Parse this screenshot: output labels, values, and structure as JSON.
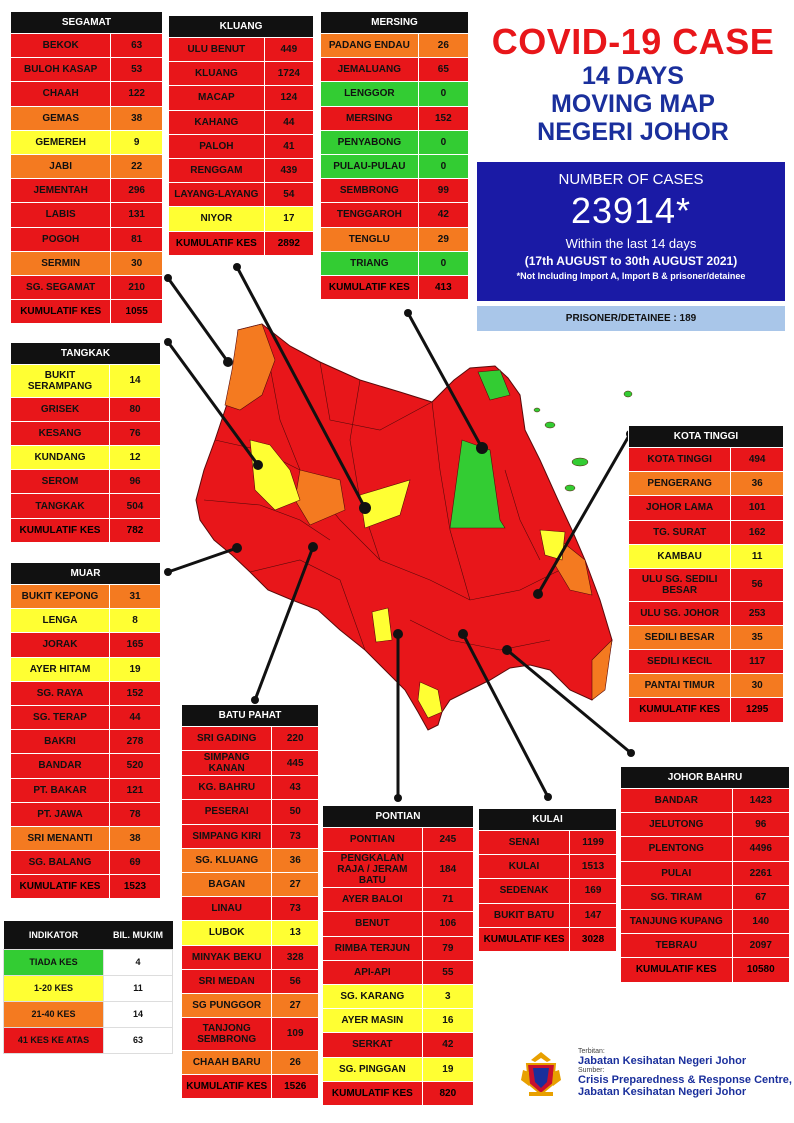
{
  "header": {
    "title": "COVID-19 CASE",
    "subtitle_1": "14 DAYS",
    "subtitle_2": "MOVING MAP",
    "subtitle_3": "NEGERI JOHOR"
  },
  "summary": {
    "label": "NUMBER OF CASES",
    "total": "23914*",
    "period_text": "Within the last 14 days",
    "period_dates": "(17th AUGUST  to 30th AUGUST 2021)",
    "note": "*Not Including Import A, Import B & prisoner/detainee",
    "prisoner_label": "PRISONER/DETAINEE  : 189"
  },
  "colors": {
    "red": "#e8161a",
    "orange": "#f47a20",
    "yellow": "#ffff33",
    "green": "#33cc33",
    "header_blue": "#1a2f9c",
    "box_blue": "#1a1aa5",
    "prisoner_bg": "#a9c6e9"
  },
  "districts": {
    "segamat": {
      "name": "SEGAMAT",
      "rows": [
        {
          "mukim": "BEKOK",
          "cases": "63",
          "level": "red"
        },
        {
          "mukim": "BULOH KASAP",
          "cases": "53",
          "level": "red"
        },
        {
          "mukim": "CHAAH",
          "cases": "122",
          "level": "red"
        },
        {
          "mukim": "GEMAS",
          "cases": "38",
          "level": "org"
        },
        {
          "mukim": "GEMEREH",
          "cases": "9",
          "level": "yel"
        },
        {
          "mukim": "JABI",
          "cases": "22",
          "level": "org"
        },
        {
          "mukim": "JEMENTAH",
          "cases": "296",
          "level": "red"
        },
        {
          "mukim": "LABIS",
          "cases": "131",
          "level": "red"
        },
        {
          "mukim": "POGOH",
          "cases": "81",
          "level": "red"
        },
        {
          "mukim": "SERMIN",
          "cases": "30",
          "level": "org"
        },
        {
          "mukim": "SG. SEGAMAT",
          "cases": "210",
          "level": "red"
        }
      ],
      "total_label": "KUMULATIF KES",
      "total": "1055"
    },
    "kluang": {
      "name": "KLUANG",
      "rows": [
        {
          "mukim": "ULU BENUT",
          "cases": "449",
          "level": "red"
        },
        {
          "mukim": "KLUANG",
          "cases": "1724",
          "level": "red"
        },
        {
          "mukim": "MACAP",
          "cases": "124",
          "level": "red"
        },
        {
          "mukim": "KAHANG",
          "cases": "44",
          "level": "red"
        },
        {
          "mukim": "PALOH",
          "cases": "41",
          "level": "red"
        },
        {
          "mukim": "RENGGAM",
          "cases": "439",
          "level": "red"
        },
        {
          "mukim": "LAYANG-LAYANG",
          "cases": "54",
          "level": "red"
        },
        {
          "mukim": "NIYOR",
          "cases": "17",
          "level": "yel"
        }
      ],
      "total_label": "KUMULATIF KES",
      "total": "2892"
    },
    "mersing": {
      "name": "MERSING",
      "rows": [
        {
          "mukim": "PADANG ENDAU",
          "cases": "26",
          "level": "org"
        },
        {
          "mukim": "JEMALUANG",
          "cases": "65",
          "level": "red"
        },
        {
          "mukim": "LENGGOR",
          "cases": "0",
          "level": "grn"
        },
        {
          "mukim": "MERSING",
          "cases": "152",
          "level": "red"
        },
        {
          "mukim": "PENYABONG",
          "cases": "0",
          "level": "grn"
        },
        {
          "mukim": "PULAU-PULAU",
          "cases": "0",
          "level": "grn"
        },
        {
          "mukim": "SEMBRONG",
          "cases": "99",
          "level": "red"
        },
        {
          "mukim": "TENGGAROH",
          "cases": "42",
          "level": "red"
        },
        {
          "mukim": "TENGLU",
          "cases": "29",
          "level": "org"
        },
        {
          "mukim": "TRIANG",
          "cases": "0",
          "level": "grn"
        }
      ],
      "total_label": "KUMULATIF KES",
      "total": "413"
    },
    "tangkak": {
      "name": "TANGKAK",
      "rows": [
        {
          "mukim": "BUKIT SERAMPANG",
          "cases": "14",
          "level": "yel"
        },
        {
          "mukim": "GRISEK",
          "cases": "80",
          "level": "red"
        },
        {
          "mukim": "KESANG",
          "cases": "76",
          "level": "red"
        },
        {
          "mukim": "KUNDANG",
          "cases": "12",
          "level": "yel"
        },
        {
          "mukim": "SEROM",
          "cases": "96",
          "level": "red"
        },
        {
          "mukim": "TANGKAK",
          "cases": "504",
          "level": "red"
        }
      ],
      "total_label": "KUMULATIF KES",
      "total": "782"
    },
    "muar": {
      "name": "MUAR",
      "rows": [
        {
          "mukim": "BUKIT KEPONG",
          "cases": "31",
          "level": "org"
        },
        {
          "mukim": "LENGA",
          "cases": "8",
          "level": "yel"
        },
        {
          "mukim": "JORAK",
          "cases": "165",
          "level": "red"
        },
        {
          "mukim": "AYER HITAM",
          "cases": "19",
          "level": "yel"
        },
        {
          "mukim": "SG. RAYA",
          "cases": "152",
          "level": "red"
        },
        {
          "mukim": "SG. TERAP",
          "cases": "44",
          "level": "red"
        },
        {
          "mukim": "BAKRI",
          "cases": "278",
          "level": "red"
        },
        {
          "mukim": "BANDAR",
          "cases": "520",
          "level": "red"
        },
        {
          "mukim": "PT. BAKAR",
          "cases": "121",
          "level": "red"
        },
        {
          "mukim": "PT. JAWA",
          "cases": "78",
          "level": "red"
        },
        {
          "mukim": "SRI MENANTI",
          "cases": "38",
          "level": "org"
        },
        {
          "mukim": "SG. BALANG",
          "cases": "69",
          "level": "red"
        }
      ],
      "total_label": "KUMULATIF KES",
      "total": "1523"
    },
    "kota_tinggi": {
      "name": "KOTA TINGGI",
      "rows": [
        {
          "mukim": "KOTA TINGGI",
          "cases": "494",
          "level": "red"
        },
        {
          "mukim": "PENGERANG",
          "cases": "36",
          "level": "org"
        },
        {
          "mukim": "JOHOR LAMA",
          "cases": "101",
          "level": "red"
        },
        {
          "mukim": "TG. SURAT",
          "cases": "162",
          "level": "red"
        },
        {
          "mukim": "KAMBAU",
          "cases": "11",
          "level": "yel"
        },
        {
          "mukim": "ULU SG. SEDILI BESAR",
          "cases": "56",
          "level": "red"
        },
        {
          "mukim": "ULU SG. JOHOR",
          "cases": "253",
          "level": "red"
        },
        {
          "mukim": "SEDILI BESAR",
          "cases": "35",
          "level": "org"
        },
        {
          "mukim": "SEDILI KECIL",
          "cases": "117",
          "level": "red"
        },
        {
          "mukim": "PANTAI TIMUR",
          "cases": "30",
          "level": "org"
        }
      ],
      "total_label": "KUMULATIF KES",
      "total": "1295"
    },
    "batu_pahat": {
      "name": "BATU PAHAT",
      "rows": [
        {
          "mukim": "SRI GADING",
          "cases": "220",
          "level": "red"
        },
        {
          "mukim": "SIMPANG KANAN",
          "cases": "445",
          "level": "red"
        },
        {
          "mukim": "KG. BAHRU",
          "cases": "43",
          "level": "red"
        },
        {
          "mukim": "PESERAI",
          "cases": "50",
          "level": "red"
        },
        {
          "mukim": "SIMPANG KIRI",
          "cases": "73",
          "level": "red"
        },
        {
          "mukim": "SG. KLUANG",
          "cases": "36",
          "level": "org"
        },
        {
          "mukim": "BAGAN",
          "cases": "27",
          "level": "org"
        },
        {
          "mukim": "LINAU",
          "cases": "73",
          "level": "red"
        },
        {
          "mukim": "LUBOK",
          "cases": "13",
          "level": "yel"
        },
        {
          "mukim": "MINYAK BEKU",
          "cases": "328",
          "level": "red"
        },
        {
          "mukim": "SRI MEDAN",
          "cases": "56",
          "level": "red"
        },
        {
          "mukim": "SG PUNGGOR",
          "cases": "27",
          "level": "org"
        },
        {
          "mukim": "TANJONG SEMBRONG",
          "cases": "109",
          "level": "red"
        },
        {
          "mukim": "CHAAH BARU",
          "cases": "26",
          "level": "org"
        }
      ],
      "total_label": "KUMULATIF KES",
      "total": "1526"
    },
    "pontian": {
      "name": "PONTIAN",
      "rows": [
        {
          "mukim": "PONTIAN",
          "cases": "245",
          "level": "red"
        },
        {
          "mukim": "PENGKALAN RAJA / JERAM BATU",
          "cases": "184",
          "level": "red"
        },
        {
          "mukim": "AYER BALOI",
          "cases": "71",
          "level": "red"
        },
        {
          "mukim": "BENUT",
          "cases": "106",
          "level": "red"
        },
        {
          "mukim": "RIMBA TERJUN",
          "cases": "79",
          "level": "red"
        },
        {
          "mukim": "API-API",
          "cases": "55",
          "level": "red"
        },
        {
          "mukim": "SG. KARANG",
          "cases": "3",
          "level": "yel"
        },
        {
          "mukim": "AYER MASIN",
          "cases": "16",
          "level": "yel"
        },
        {
          "mukim": "SERKAT",
          "cases": "42",
          "level": "red"
        },
        {
          "mukim": "SG. PINGGAN",
          "cases": "19",
          "level": "yel"
        }
      ],
      "total_label": "KUMULATIF KES",
      "total": "820"
    },
    "kulai": {
      "name": "KULAI",
      "rows": [
        {
          "mukim": "SENAI",
          "cases": "1199",
          "level": "red"
        },
        {
          "mukim": "KULAI",
          "cases": "1513",
          "level": "red"
        },
        {
          "mukim": "SEDENAK",
          "cases": "169",
          "level": "red"
        },
        {
          "mukim": "BUKIT BATU",
          "cases": "147",
          "level": "red"
        }
      ],
      "total_label": "KUMULATIF KES",
      "total": "3028"
    },
    "johor_bahru": {
      "name": "JOHOR BAHRU",
      "rows": [
        {
          "mukim": "BANDAR",
          "cases": "1423",
          "level": "red"
        },
        {
          "mukim": "JELUTONG",
          "cases": "96",
          "level": "red"
        },
        {
          "mukim": "PLENTONG",
          "cases": "4496",
          "level": "red"
        },
        {
          "mukim": "PULAI",
          "cases": "2261",
          "level": "red"
        },
        {
          "mukim": "SG. TIRAM",
          "cases": "67",
          "level": "red"
        },
        {
          "mukim": "TANJUNG KUPANG",
          "cases": "140",
          "level": "red"
        },
        {
          "mukim": "TEBRAU",
          "cases": "2097",
          "level": "red"
        }
      ],
      "total_label": "KUMULATIF KES",
      "total": "10580"
    }
  },
  "legend": {
    "col1": "INDIKATOR",
    "col2": "BIL. MUKIM",
    "rows": [
      {
        "label": "TIADA KES",
        "count": "4",
        "level": "grn"
      },
      {
        "label": "1-20 KES",
        "count": "11",
        "level": "yel"
      },
      {
        "label": "21-40 KES",
        "count": "14",
        "level": "org"
      },
      {
        "label": "41 KES KE ATAS",
        "count": "63",
        "level": "red"
      }
    ]
  },
  "credits": {
    "issued_by_label": "Terbitan:",
    "issued_by": "Jabatan Kesihatan Negeri Johor",
    "source_label": "Sumber:",
    "source_1": "Crisis Preparedness & Response Centre,",
    "source_2": "Jabatan Kesihatan Negeri Johor"
  }
}
